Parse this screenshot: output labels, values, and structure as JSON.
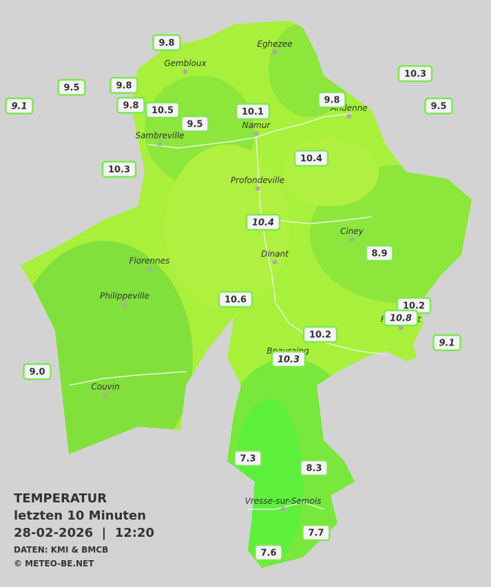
{
  "title": {
    "heading": "TEMPERATUR",
    "period": "letzten 10 Minuten",
    "datetime": "28-02-2026  |  12:20",
    "source": "DATEN: KMI & BMCB",
    "copyright": "© METEO-BE.NET"
  },
  "cities": [
    {
      "name": "Eghezee"
    },
    {
      "name": "Gembloux"
    },
    {
      "name": "Andenne"
    },
    {
      "name": "Namur"
    },
    {
      "name": "Sambreville"
    },
    {
      "name": "Profondeville"
    },
    {
      "name": "Ciney"
    },
    {
      "name": "Dinant"
    },
    {
      "name": "Florennes"
    },
    {
      "name": "Philippeville"
    },
    {
      "name": "Rochefort"
    },
    {
      "name": "Beauraing"
    },
    {
      "name": "Couvin"
    },
    {
      "name": "Vresse-sur-Semois"
    }
  ],
  "stations": [
    {
      "label": "9.8"
    },
    {
      "label": "9.5"
    },
    {
      "label": "9.8"
    },
    {
      "label": "9.1",
      "italic": true
    },
    {
      "label": "9.8"
    },
    {
      "label": "10.5"
    },
    {
      "label": "9.5"
    },
    {
      "label": "10.1"
    },
    {
      "label": "9.8"
    },
    {
      "label": "10.3"
    },
    {
      "label": "9.5"
    },
    {
      "label": "10.3"
    },
    {
      "label": "10.4"
    },
    {
      "label": "10.4",
      "italic": true
    },
    {
      "label": "8.9"
    },
    {
      "label": "10.6"
    },
    {
      "label": "10.2"
    },
    {
      "label": "10.8",
      "italic": true
    },
    {
      "label": "9.1",
      "italic": true
    },
    {
      "label": "10.2"
    },
    {
      "label": "10.3",
      "italic": true
    },
    {
      "label": "9.0"
    },
    {
      "label": "7.3"
    },
    {
      "label": "8.3"
    },
    {
      "label": "7.7"
    },
    {
      "label": "7.6"
    }
  ]
}
